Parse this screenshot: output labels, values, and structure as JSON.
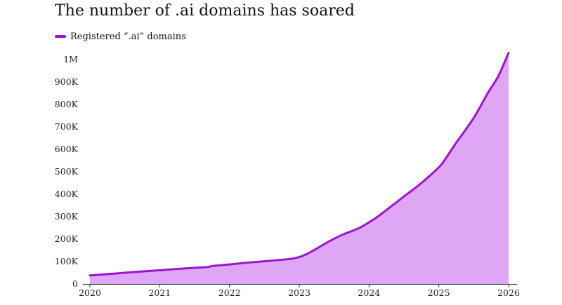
{
  "chart_data": {
    "type": "area",
    "title": "The number of .ai domains has soared",
    "xlabel": "",
    "ylabel": "",
    "x_ticks": [
      "2020",
      "2021",
      "2022",
      "2023",
      "2024",
      "2025",
      "2026"
    ],
    "y_ticks": [
      "0",
      "100K",
      "200K",
      "300K",
      "400K",
      "500K",
      "600K",
      "700K",
      "800K",
      "900K",
      "1M"
    ],
    "xlim": [
      2020,
      2026
    ],
    "ylim": [
      0,
      1000000
    ],
    "grid": false,
    "legend_position": "top-left",
    "series": [
      {
        "name": "Registered “.ai” domains",
        "line_color": "#9b14d1",
        "fill_color": "#dfa6f5",
        "x": [
          2020.0,
          2020.25,
          2020.5,
          2020.75,
          2021.0,
          2021.25,
          2021.5,
          2021.7,
          2021.75,
          2022.0,
          2022.25,
          2022.5,
          2022.75,
          2022.9,
          2023.0,
          2023.1,
          2023.25,
          2023.4,
          2023.6,
          2023.85,
          2024.0,
          2024.1,
          2024.25,
          2024.5,
          2024.75,
          2025.0,
          2025.1,
          2025.25,
          2025.5,
          2025.7,
          2025.85,
          2026.0
        ],
        "y": [
          38000,
          44000,
          50000,
          56000,
          61000,
          67000,
          72000,
          76000,
          80000,
          87000,
          95000,
          101000,
          108000,
          113000,
          120000,
          132000,
          158000,
          185000,
          217000,
          248000,
          275000,
          295000,
          330000,
          390000,
          450000,
          520000,
          560000,
          630000,
          740000,
          850000,
          925000,
          1030000
        ]
      }
    ]
  }
}
